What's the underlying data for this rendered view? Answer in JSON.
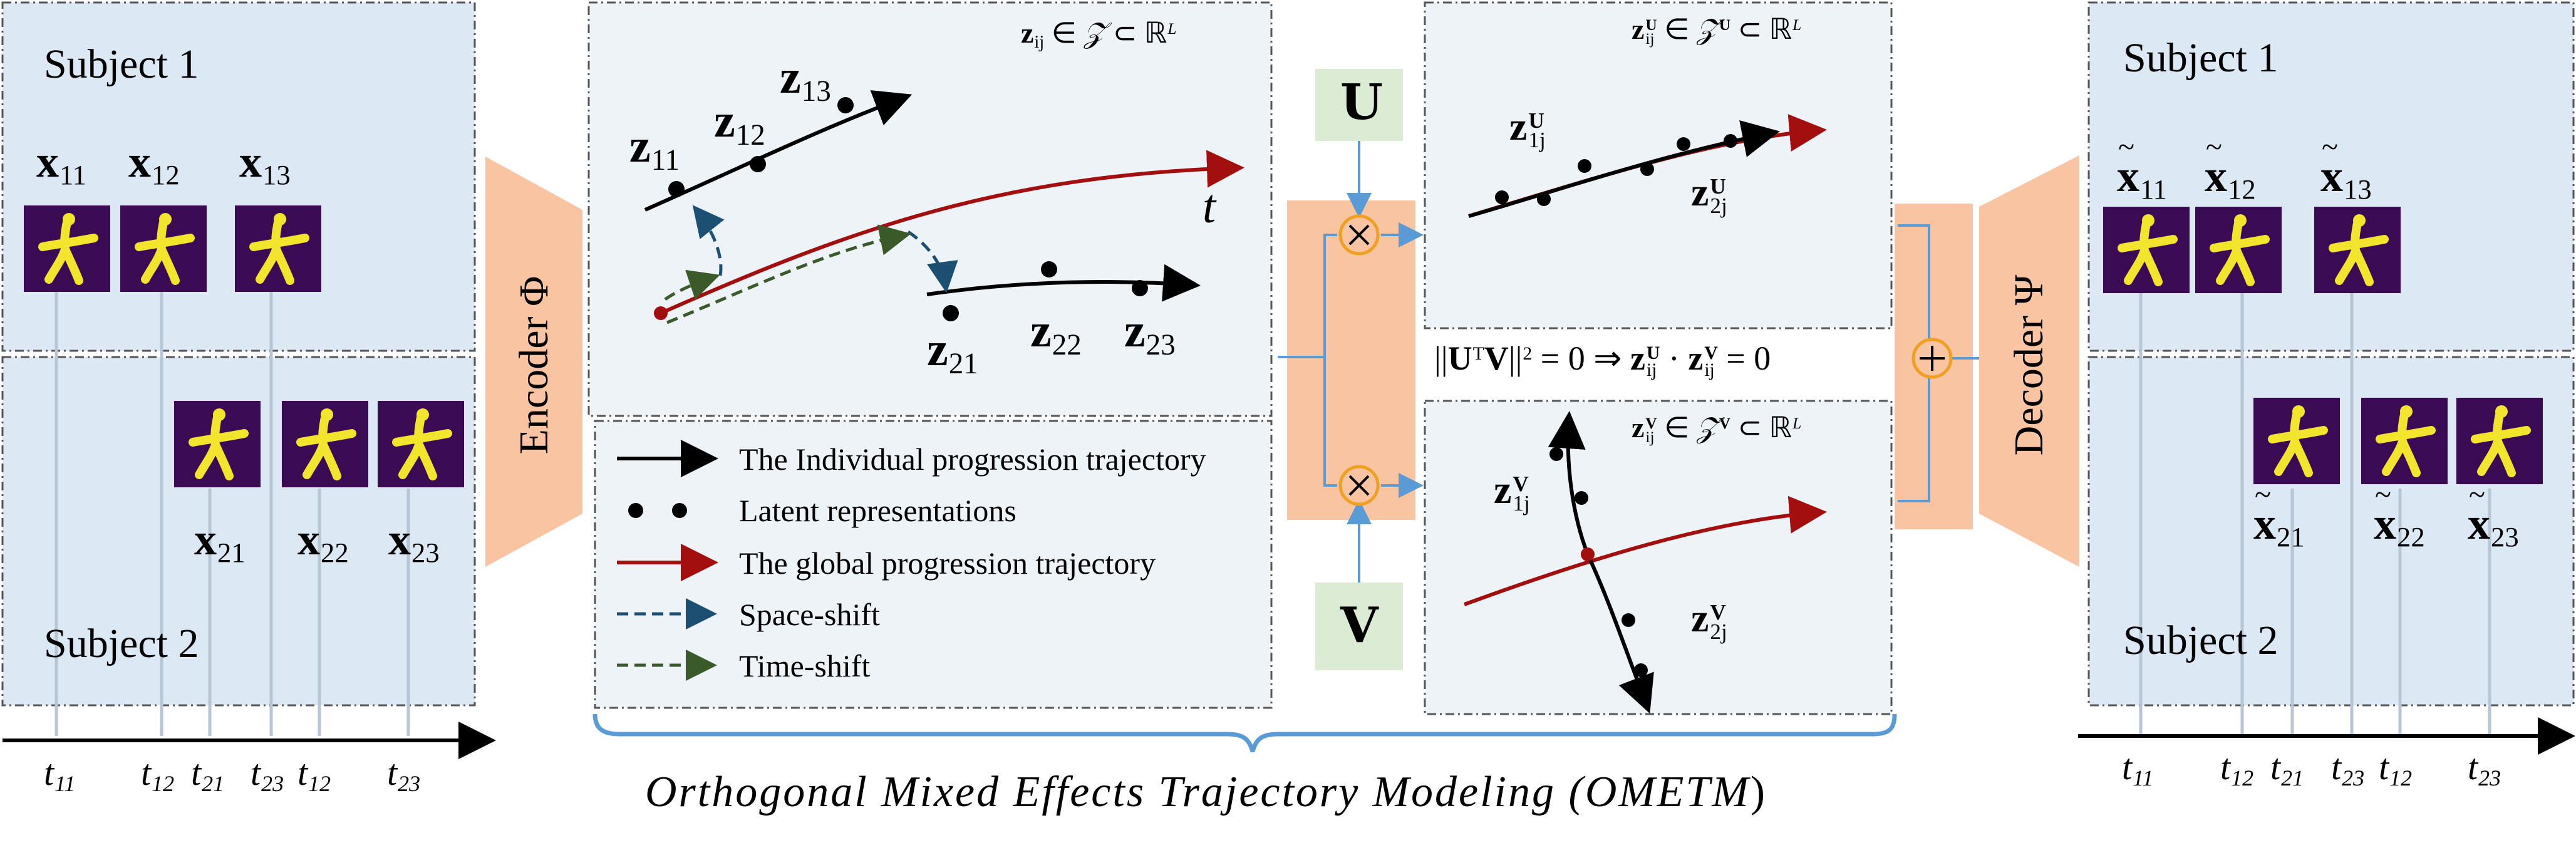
{
  "encoder": {
    "subject1_label": "Subject 1",
    "subject2_label": "Subject 2",
    "x_vars": [
      "11",
      "12",
      "13",
      "21",
      "22",
      "23"
    ],
    "tick_labels": [
      "t11",
      "t12",
      "t21",
      "t23",
      "t12",
      "t23"
    ],
    "encoder_label": "Encoder Φ"
  },
  "latent": {
    "set_label": "zij ∈ 𝒵 ⊂ ℝL",
    "z_vars": [
      "11",
      "12",
      "13",
      "21",
      "22",
      "23"
    ],
    "t_label": "t",
    "legend": [
      {
        "text": "The Individual progression trajectory",
        "color": "#000000"
      },
      {
        "text": "Latent representations",
        "color": "#000000"
      },
      {
        "text": "The global progression trajectory",
        "color": "#a30f0f"
      },
      {
        "text": "Space-shift",
        "color": "#1d4f73"
      },
      {
        "text": "Time-shift",
        "color": "#3b5a2a"
      }
    ]
  },
  "projection": {
    "u_label": "U",
    "v_label": "V",
    "u_set": "zUij ∈ 𝒵U ⊂ ℝL",
    "v_set": "zVij ∈ 𝒵V ⊂ ℝL",
    "zu_vars": [
      "1j",
      "2j"
    ],
    "zv_vars": [
      "1j",
      "2j"
    ],
    "orth_constraint": "||UTV||2 = 0 ⇒ zUij · zVij = 0"
  },
  "decoder": {
    "decoder_label": "Decoder Ψ",
    "subject1_label": "Subject 1",
    "subject2_label": "Subject 2",
    "xt_vars": [
      "11",
      "12",
      "13",
      "21",
      "22",
      "23"
    ],
    "tick_labels": [
      "t11",
      "t12",
      "t21",
      "t23",
      "t12",
      "t23"
    ]
  },
  "caption": {
    "text": "Orthogonal Mixed Effects Trajectory Modeling (",
    "abbr": "OMETM",
    "close": ")"
  },
  "colors": {
    "panel_bg": "#dce8f4",
    "latent_bg": "#eef3f8",
    "orange": "#f8c4a2",
    "green_box": "#dcebd4",
    "red_traj": "#a30f0f",
    "brace": "#5b9bd5",
    "silhouette_bg": "#3b0a54",
    "silhouette_fg": "#f2e52b"
  }
}
